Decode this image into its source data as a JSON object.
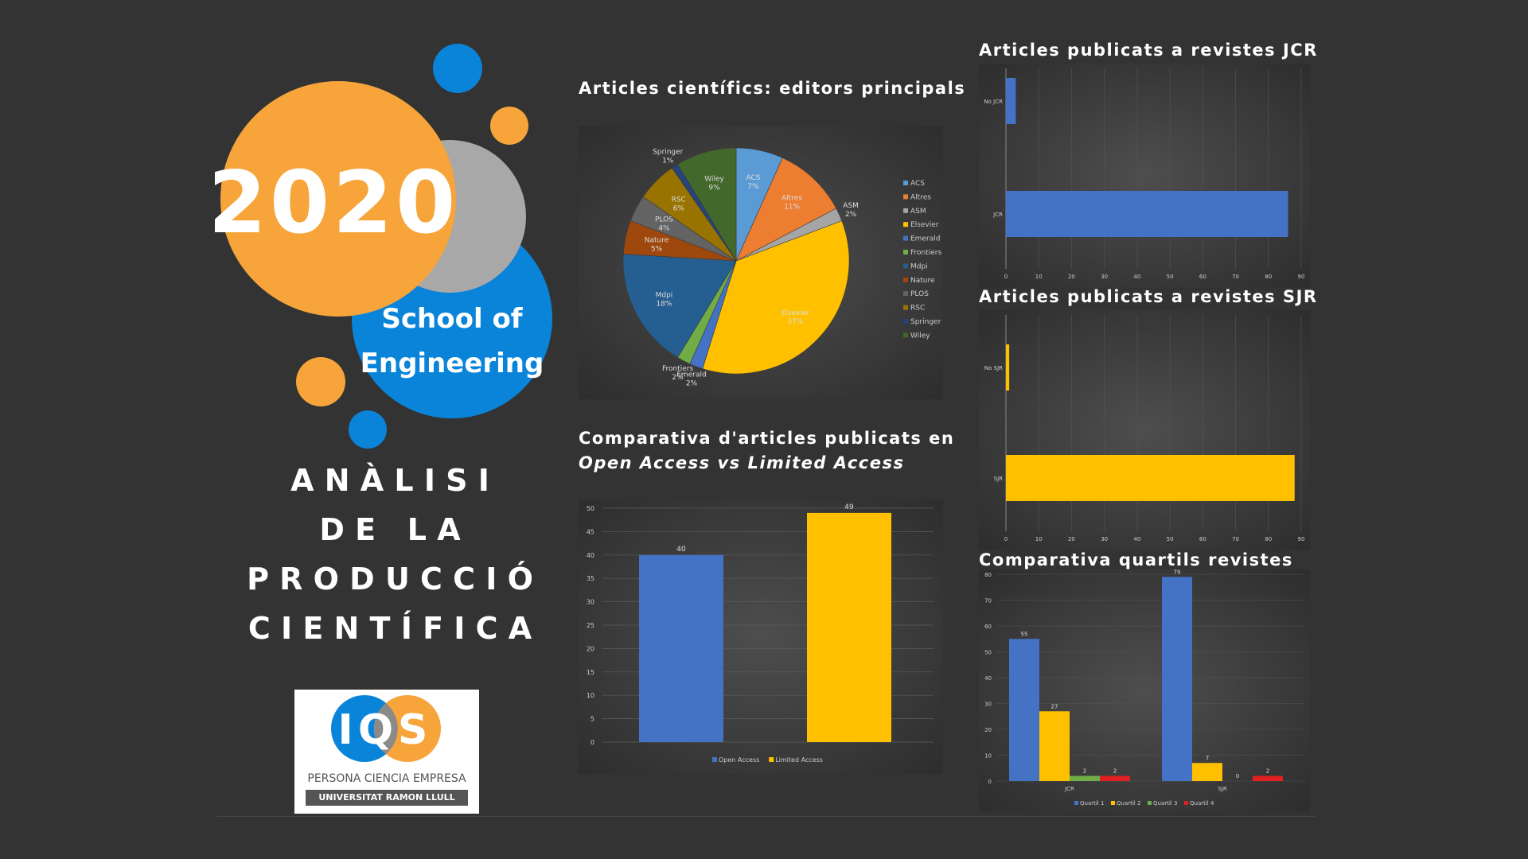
{
  "poster": {
    "year": "2020",
    "school_line1": "School of",
    "school_line2": "Engineering",
    "title_lines": [
      "A N À L I S I",
      "D E   L A",
      "P R O D U C C I Ó",
      "C I E N T Í F I C A"
    ],
    "logo": {
      "letters": "IQS",
      "tagline": "PERSONA CIENCIA EMPRESA",
      "university": "UNIVERSITAT RAMON LLULL"
    },
    "colors": {
      "orange": "#f7a53b",
      "blue": "#0a84d9",
      "grey": "#a8a8a8",
      "background": "#333333"
    }
  },
  "titles": {
    "pie": "Articles científics: editors principals",
    "oa_line1": "Comparativa d'articles publicats en",
    "oa_line2": "Open Access vs Limited Access",
    "jcr": "Articles publicats a revistes JCR",
    "sjr": "Articles publicats a revistes SJR",
    "quartils": "Comparativa quartils revistes"
  },
  "chart_data": [
    {
      "type": "pie",
      "title": "Articles científics: editors principals",
      "slices": [
        {
          "label": "ACS",
          "value": 7,
          "display": "7%",
          "color": "#5b9bd5"
        },
        {
          "label": "Altres",
          "value": 11,
          "display": "11%",
          "color": "#ed7d31"
        },
        {
          "label": "ASM",
          "value": 2,
          "display": "2%",
          "color": "#a5a5a5"
        },
        {
          "label": "Elsevier",
          "value": 37,
          "display": "37%",
          "color": "#ffc000"
        },
        {
          "label": "Emerald",
          "value": 2,
          "display": "2%",
          "color": "#4472c4"
        },
        {
          "label": "Frontiers",
          "value": 2,
          "display": "2%",
          "color": "#70ad47"
        },
        {
          "label": "Mdpi",
          "value": 18,
          "display": "18%",
          "color": "#255e91"
        },
        {
          "label": "Nature",
          "value": 5,
          "display": "5%",
          "color": "#9e480e"
        },
        {
          "label": "PLOS",
          "value": 4,
          "display": "4%",
          "color": "#636363"
        },
        {
          "label": "RSC",
          "value": 6,
          "display": "6%",
          "color": "#997300"
        },
        {
          "label": "Springer",
          "value": 1,
          "display": "1%",
          "color": "#264478"
        },
        {
          "label": "Wiley",
          "value": 9,
          "display": "9%",
          "color": "#43682b"
        }
      ],
      "legend_position": "right"
    },
    {
      "type": "bar",
      "title": "Comparativa d'articles publicats en Open Access vs Limited Access",
      "series": [
        {
          "name": "Open Access",
          "value": 40,
          "color": "#4472c4"
        },
        {
          "name": "Limited Access",
          "value": 49,
          "color": "#ffc000"
        }
      ],
      "ylim": [
        0,
        50
      ],
      "yticks": [
        0,
        5,
        10,
        15,
        20,
        25,
        30,
        35,
        40,
        45,
        50
      ],
      "legend_position": "bottom"
    },
    {
      "type": "bar",
      "orientation": "horizontal",
      "title": "Articles publicats a revistes JCR",
      "categories": [
        "No JCR",
        "JCR"
      ],
      "values": [
        3,
        86
      ],
      "color": "#4472c4",
      "xlim": [
        0,
        90
      ],
      "xticks": [
        0,
        10,
        20,
        30,
        40,
        50,
        60,
        70,
        80,
        90
      ]
    },
    {
      "type": "bar",
      "orientation": "horizontal",
      "title": "Articles publicats a revistes SJR",
      "categories": [
        "No SJR",
        "SJR"
      ],
      "values": [
        1,
        88
      ],
      "color": "#ffc000",
      "xlim": [
        0,
        90
      ],
      "xticks": [
        0,
        10,
        20,
        30,
        40,
        50,
        60,
        70,
        80,
        90
      ]
    },
    {
      "type": "bar",
      "title": "Comparativa quartils revistes",
      "categories": [
        "JCR",
        "SJR"
      ],
      "series": [
        {
          "name": "Quartil 1",
          "values": [
            55,
            79
          ],
          "color": "#4472c4"
        },
        {
          "name": "Quartil 2",
          "values": [
            27,
            7
          ],
          "color": "#ffc000"
        },
        {
          "name": "Quartil 3",
          "values": [
            2,
            0
          ],
          "color": "#70ad47"
        },
        {
          "name": "Quartil 4",
          "values": [
            2,
            2
          ],
          "color": "#e02020"
        }
      ],
      "ylim": [
        0,
        80
      ],
      "yticks": [
        0,
        10,
        20,
        30,
        40,
        50,
        60,
        70,
        80
      ],
      "legend_position": "bottom"
    }
  ]
}
